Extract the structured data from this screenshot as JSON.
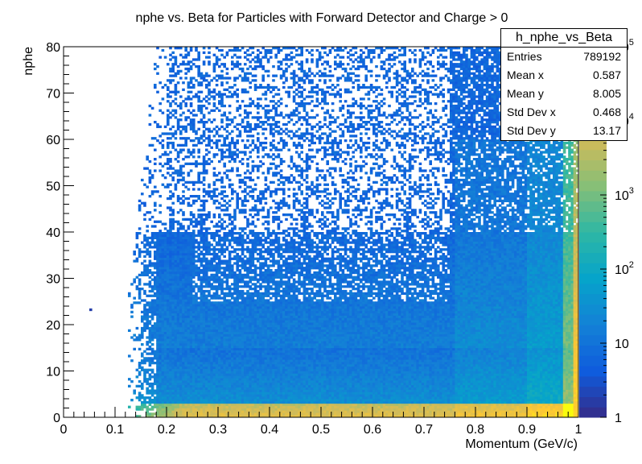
{
  "chart_data": {
    "type": "heatmap",
    "title": "nphe vs. Beta for Particles with Forward Detector and Charge > 0",
    "xlabel": "Momentum (GeV/c)",
    "ylabel": "nphe",
    "xlim": [
      0,
      1
    ],
    "ylim": [
      0,
      80
    ],
    "x_ticks": [
      "0",
      "0.1",
      "0.2",
      "0.3",
      "0.4",
      "0.5",
      "0.6",
      "0.7",
      "0.8",
      "0.9",
      "1"
    ],
    "y_ticks": [
      "0",
      "10",
      "20",
      "30",
      "40",
      "50",
      "60",
      "70",
      "80"
    ],
    "z_scale": "log",
    "zlim": [
      1,
      100000
    ],
    "z_ticks": [
      {
        "base": "1",
        "exp": "",
        "value": 1
      },
      {
        "base": "10",
        "exp": "",
        "value": 10
      },
      {
        "base": "10",
        "exp": "2",
        "value": 100
      },
      {
        "base": "10",
        "exp": "3",
        "value": 1000
      },
      {
        "base": "10",
        "exp": "4",
        "value": 10000
      },
      {
        "base": "10",
        "exp": "5",
        "value": 100000
      }
    ],
    "palette": [
      "#352a87",
      "#0f5cdd",
      "#1481d6",
      "#06a4ca",
      "#2eb7a4",
      "#87bf77",
      "#d1bb59",
      "#fec832",
      "#f9fb0e"
    ],
    "density_regions": {
      "x_min_populated": 0.12,
      "band_near_zero_y": [
        0,
        3
      ],
      "ridge_x": 0.99,
      "sparse_above_y": 40
    }
  },
  "stats": {
    "name": "h_nphe_vs_Beta",
    "rows": [
      {
        "label": "Entries",
        "value": "789192"
      },
      {
        "label": "Mean x",
        "value": "0.587"
      },
      {
        "label": "Mean y",
        "value": "8.005"
      },
      {
        "label": "Std Dev x",
        "value": "0.468"
      },
      {
        "label": "Std Dev y",
        "value": "13.17"
      }
    ]
  }
}
